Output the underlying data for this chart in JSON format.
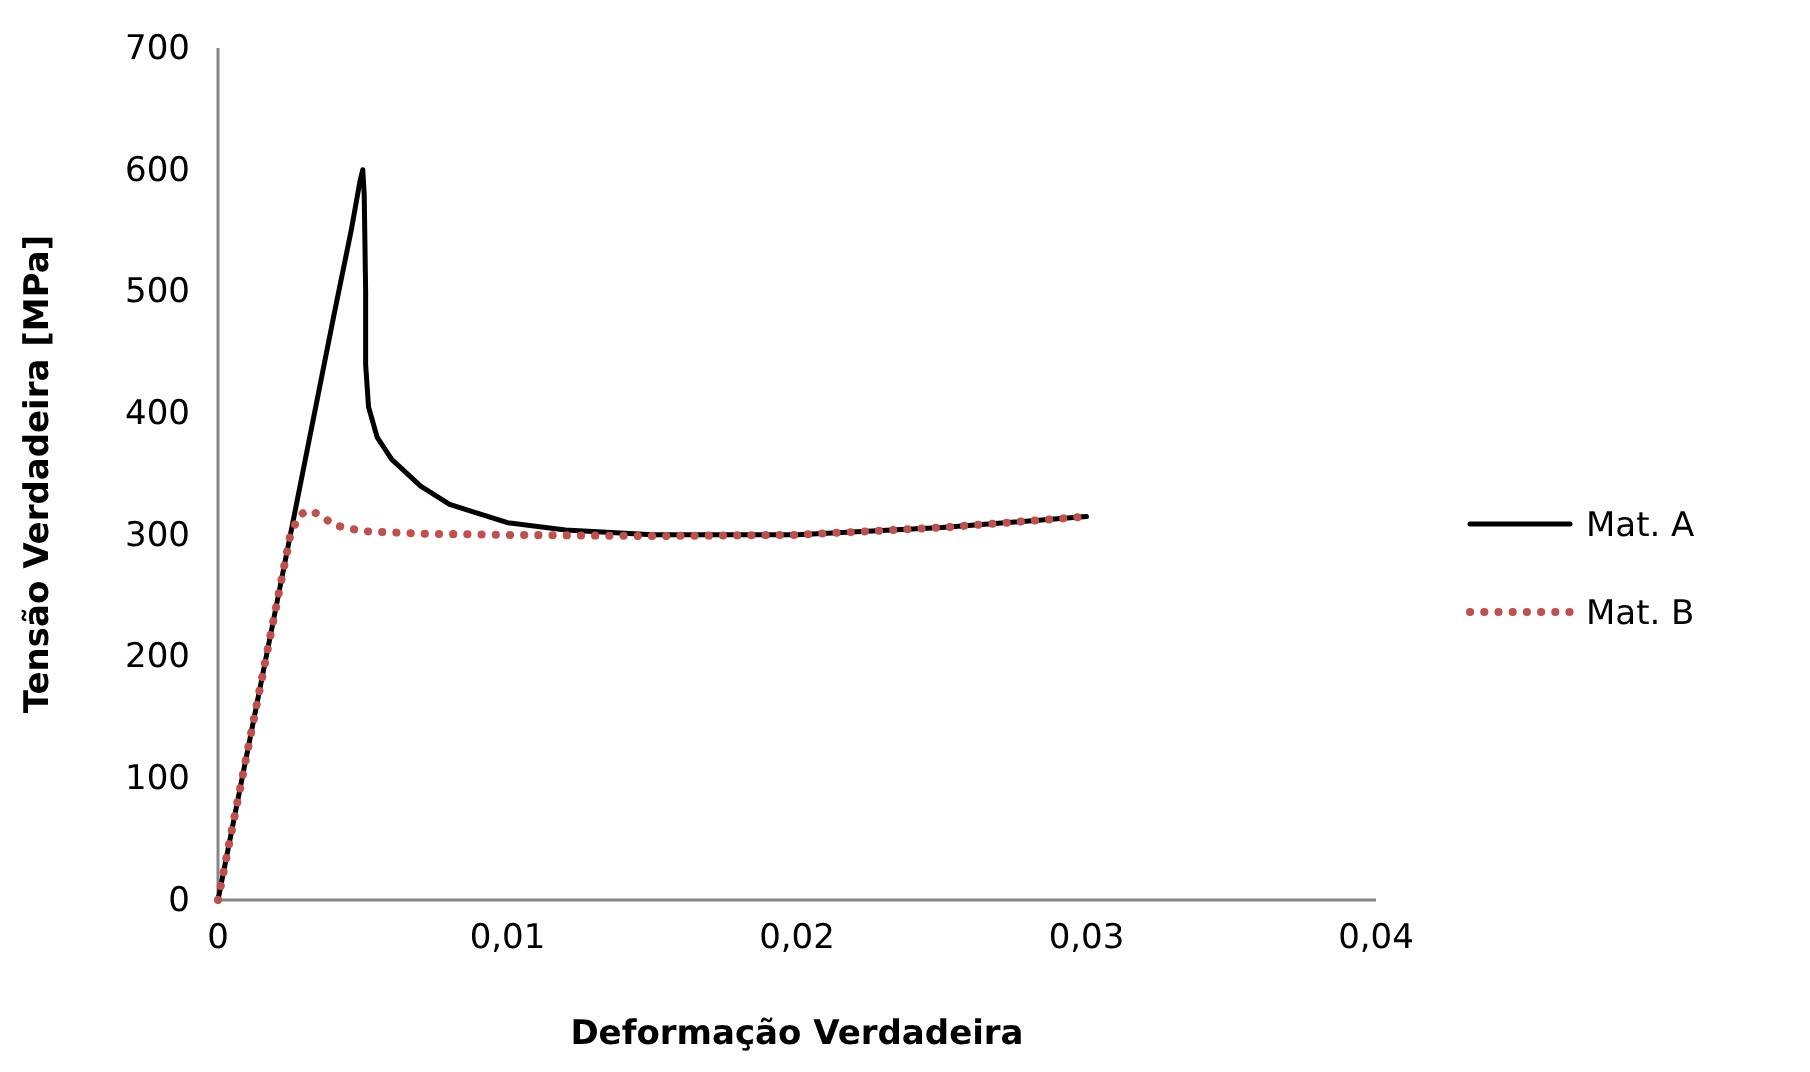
{
  "chart_data": {
    "type": "line",
    "xlabel": "Deformação Verdadeira",
    "ylabel": "Tensão Verdadeira [MPa]",
    "xlim": [
      0,
      0.04
    ],
    "xticks": [
      0,
      {
        "value": 0.01,
        "label": "0,01"
      },
      {
        "value": 0.02,
        "label": "0,02"
      },
      {
        "value": 0.03,
        "label": "0,03"
      },
      {
        "value": 0.04,
        "label": "0,04"
      }
    ],
    "ylim": [
      0,
      700
    ],
    "yticks": [
      0,
      100,
      200,
      300,
      400,
      500,
      600,
      700
    ],
    "grid": false,
    "legend": "right",
    "series": [
      {
        "name": "Mat. A",
        "color": "#000000",
        "line_style": "solid",
        "x": [
          0,
          0.001,
          0.002,
          0.003,
          0.004,
          0.0046,
          0.0049,
          0.005,
          0.00505,
          0.0051,
          0.0051,
          0.0052,
          0.0055,
          0.006,
          0.007,
          0.008,
          0.01,
          0.012,
          0.015,
          0.02,
          0.025,
          0.03
        ],
        "values": [
          0,
          120,
          240,
          360,
          480,
          550,
          590,
          600,
          580,
          500,
          440,
          405,
          380,
          362,
          340,
          325,
          310,
          304,
          300,
          300,
          306,
          315
        ]
      },
      {
        "name": "Mat. B",
        "color": "#c0504d",
        "line_style": "dotted",
        "x": [
          0,
          0.001,
          0.002,
          0.0025,
          0.0028,
          0.0031,
          0.0035,
          0.004,
          0.005,
          0.007,
          0.01,
          0.015,
          0.02,
          0.025,
          0.03
        ],
        "values": [
          0,
          120,
          240,
          300,
          316,
          320,
          317,
          308,
          303,
          301,
          300,
          299,
          300,
          306,
          315
        ]
      }
    ]
  }
}
